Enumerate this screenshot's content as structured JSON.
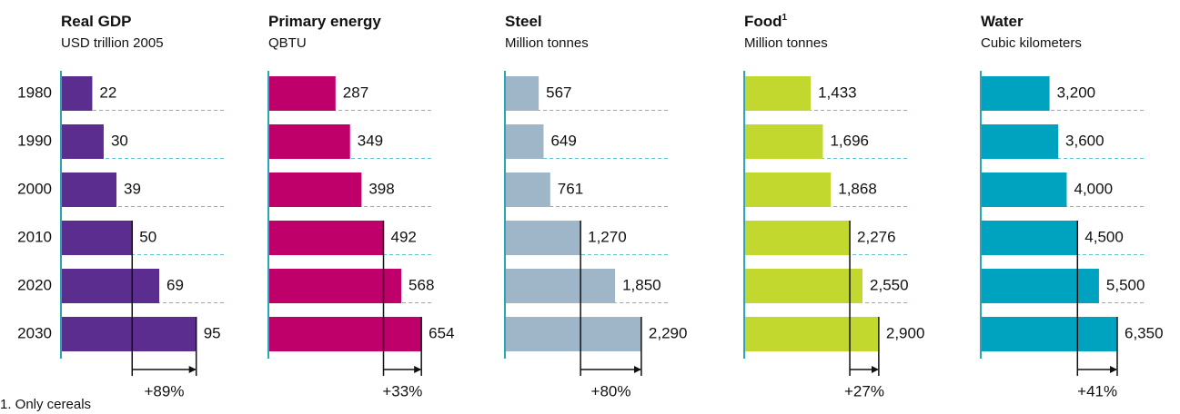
{
  "chart_data": [
    {
      "type": "bar",
      "title": "Real GDP",
      "subtitle": "USD trillion 2005",
      "categories": [
        "1980",
        "1990",
        "2000",
        "2010",
        "2020",
        "2030"
      ],
      "values": [
        22,
        30,
        39,
        50,
        69,
        95
      ],
      "value_labels": [
        "22",
        "30",
        "39",
        "50",
        "69",
        "95"
      ],
      "color": "#5b2d8e",
      "xlim": [
        0,
        115
      ],
      "annotation": "+89%"
    },
    {
      "type": "bar",
      "title": "Primary energy",
      "subtitle": "QBTU",
      "values": [
        287,
        349,
        398,
        492,
        568,
        654
      ],
      "value_labels": [
        "287",
        "349",
        "398",
        "492",
        "568",
        "654"
      ],
      "color": "#c0006a",
      "xlim": [
        0,
        700
      ],
      "annotation": "+33%"
    },
    {
      "type": "bar",
      "title": "Steel",
      "subtitle": "Million tonnes",
      "values": [
        567,
        649,
        761,
        1270,
        1850,
        2290
      ],
      "value_labels": [
        "567",
        "649",
        "761",
        "1,270",
        "1,850",
        "2,290"
      ],
      "color": "#9fb6c8",
      "xlim": [
        0,
        2750
      ],
      "annotation": "+80%"
    },
    {
      "type": "bar",
      "title": "Food",
      "title_note": "1",
      "subtitle": "Million tonnes",
      "values": [
        1433,
        1696,
        1868,
        2276,
        2550,
        2900
      ],
      "value_labels": [
        "1,433",
        "1,696",
        "1,868",
        "2,276",
        "2,550",
        "2,900"
      ],
      "color": "#c3d82e",
      "xlim": [
        0,
        3530
      ],
      "annotation": "+27%"
    },
    {
      "type": "bar",
      "title": "Water",
      "subtitle": "Cubic kilometers",
      "values": [
        3200,
        3600,
        4000,
        4500,
        5500,
        6350
      ],
      "value_labels": [
        "3,200",
        "3,600",
        "4,000",
        "4,500",
        "5,500",
        "6,350"
      ],
      "color": "#00a3bf",
      "xlim": [
        0,
        7620
      ],
      "annotation": "+41%"
    }
  ],
  "footnote": "1. Only cereals"
}
